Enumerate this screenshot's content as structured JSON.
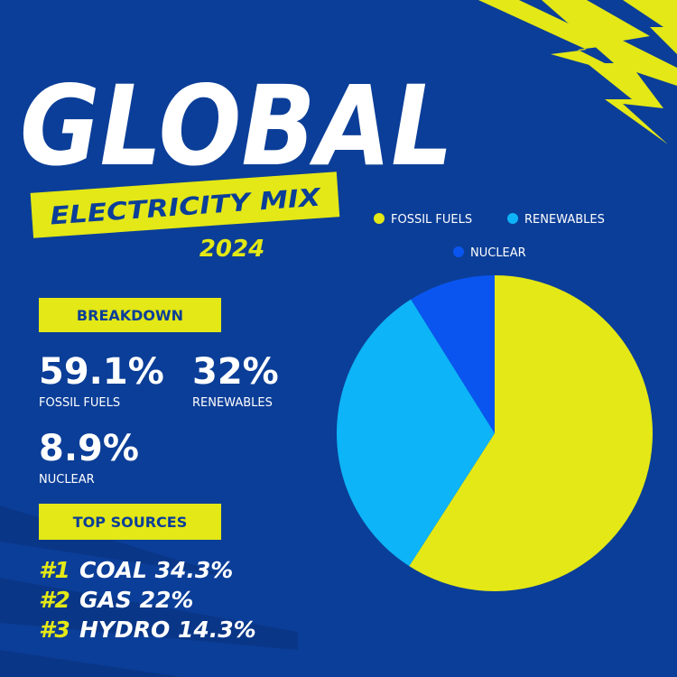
{
  "header": {
    "title": "GLOBAL",
    "subtitle": "ELECTRICITY MIX",
    "year": "2024"
  },
  "breakdown": {
    "title": "BREAKDOWN"
  },
  "chart_data": {
    "type": "pie",
    "categories": [
      "FOSSIL FUELS",
      "RENEWABLES",
      "NUCLEAR"
    ],
    "values": [
      59.1,
      32,
      8.9
    ],
    "value_labels": [
      "59.1%",
      "32%",
      "8.9%"
    ],
    "colors": [
      "#e3e816",
      "#0db4f7",
      "#0a55ef"
    ]
  },
  "top_sources": {
    "title": "TOP SOURCES",
    "items": [
      {
        "rank": "#1",
        "label": "COAL 34.3%"
      },
      {
        "rank": "#2",
        "label": "GAS 22%"
      },
      {
        "rank": "#3",
        "label": "HYDRO 14.3%"
      }
    ]
  }
}
